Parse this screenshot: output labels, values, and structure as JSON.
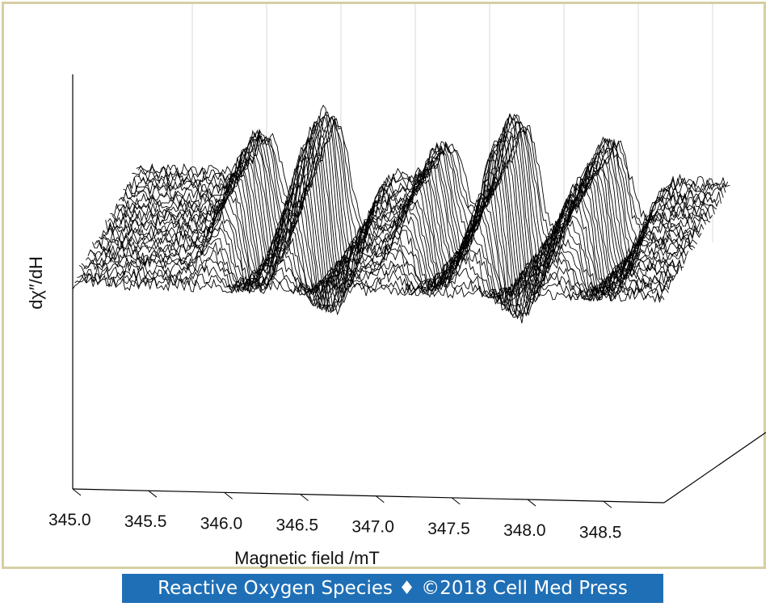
{
  "chart_data": {
    "type": "line",
    "subtype": "3d-stacked-waterfall",
    "title": "",
    "xlabel": "Magnetic field /mT",
    "ylabel": "dχ″/dH",
    "x_ticks": [
      "345.0",
      "345.5",
      "346.0",
      "346.5",
      "347.0",
      "347.5",
      "348.0",
      "348.5"
    ],
    "xlim": [
      345.0,
      348.9
    ],
    "series_count": 31,
    "peaks_mT": [
      345.9,
      346.35,
      347.1,
      347.6,
      348.2
    ],
    "line_color": "#000000",
    "grid": "vertical back-wall lines"
  },
  "footer": {
    "text": "Reactive Oxygen Species ♦ ©2018 Cell Med Press",
    "background": "#1f6fb6"
  },
  "frame_color": "#d6cfa3"
}
